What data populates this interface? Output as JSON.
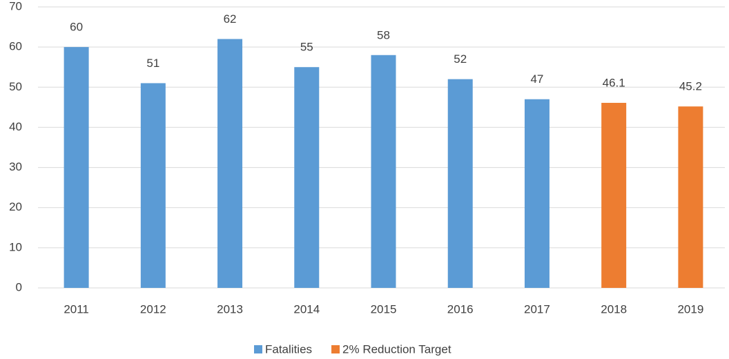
{
  "chart_data": {
    "type": "bar",
    "categories": [
      "2011",
      "2012",
      "2013",
      "2014",
      "2015",
      "2016",
      "2017",
      "2018",
      "2019"
    ],
    "series": [
      {
        "name": "Fatalities",
        "color": "#5b9bd5",
        "values": [
          60,
          51,
          62,
          55,
          58,
          52,
          47,
          null,
          null
        ]
      },
      {
        "name": "2% Reduction Target",
        "color": "#ed7d31",
        "values": [
          null,
          null,
          null,
          null,
          null,
          null,
          null,
          46.1,
          45.2
        ]
      }
    ],
    "ylim": [
      0,
      70
    ],
    "yticks": [
      0,
      10,
      20,
      30,
      40,
      50,
      60,
      70
    ],
    "grid": true,
    "legend": "bottom"
  }
}
